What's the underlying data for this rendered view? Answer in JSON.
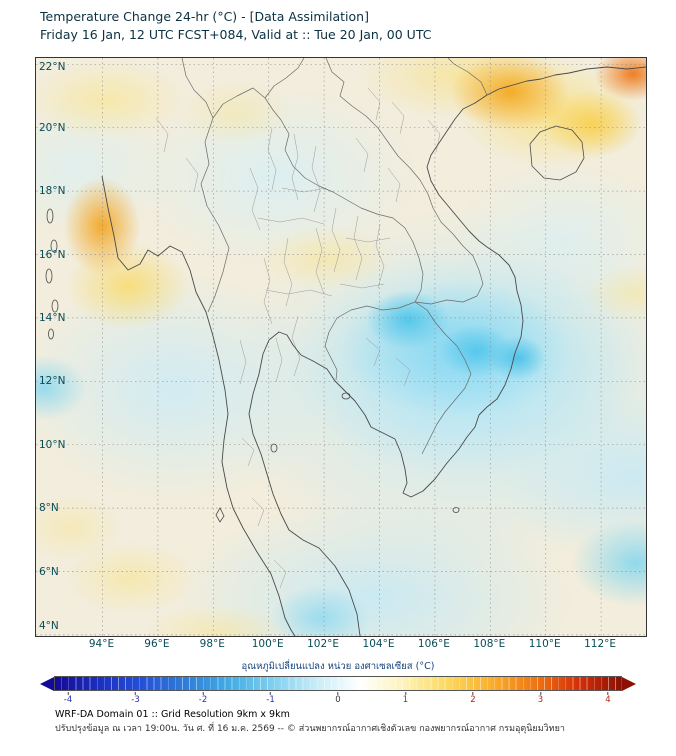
{
  "header": {
    "title": "Temperature Change 24-hr (°C) - [Data Assimilation]",
    "subtitle": "Friday 16 Jan, 12 UTC FCST+084, Valid at :: Tue 20 Jan, 00 UTC"
  },
  "map": {
    "lat_labels": [
      "22°N",
      "20°N",
      "18°N",
      "16°N",
      "14°N",
      "12°N",
      "10°N",
      "8°N",
      "6°N",
      "4°N"
    ],
    "lon_labels": [
      "94°E",
      "96°E",
      "98°E",
      "100°E",
      "102°E",
      "104°E",
      "106°E",
      "108°E",
      "110°E",
      "112°E"
    ]
  },
  "colorbar": {
    "label": "อุณหภูมิเปลี่ยนแปลง หน่วย องศาเซลเซียส (°C)",
    "ticks": [
      "-4",
      "-3",
      "-2",
      "-1",
      "0",
      "1",
      "2",
      "3",
      "4"
    ],
    "colors": [
      "#140a96",
      "#1b2ec0",
      "#2450d8",
      "#2e7ed8",
      "#41ace4",
      "#7fd0ee",
      "#c8ecf7",
      "#ffffff",
      "#fdf3bb",
      "#fcd95e",
      "#f9b02f",
      "#f07812",
      "#d63008",
      "#8c1004"
    ],
    "tick_neg_color": "#2233bb",
    "tick_zero_color": "#333333",
    "tick_pos_color": "#bb2211"
  },
  "field_palette": {
    "base": "#f2eddc",
    "cool_light": "#c8ecf7",
    "cool_deep": "#50c6eb",
    "warm_light": "#f9e28c",
    "warm_deep": "#f4a61a",
    "hot": "#ee7818"
  },
  "footer": {
    "line1": "WRF-DA Domain 01 :: Grid Resolution 9km x 9km",
    "line2": "ปรับปรุงข้อมูล ณ เวลา 19:00น. วัน ศ. ที่ 16 ม.ค. 2569 -- © ส่วนพยากรณ์อากาศเชิงตัวเลข กองพยากรณ์อากาศ กรมอุตุนิยมวิทยา"
  }
}
